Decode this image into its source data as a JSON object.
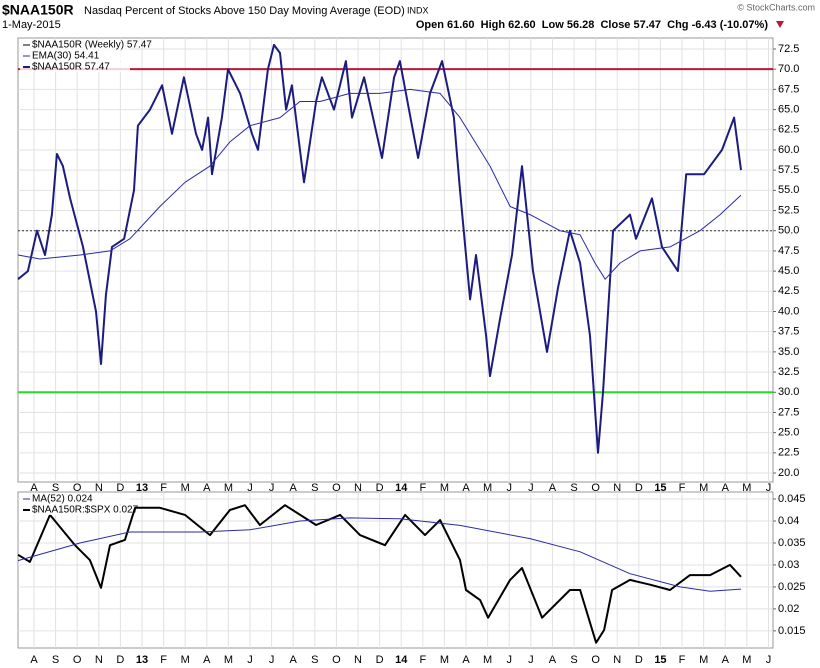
{
  "header": {
    "symbol": "$NAA150R",
    "name": "Nasdaq Percent of Stocks Above 150 Day Moving Average (EOD)",
    "exchange": "INDX",
    "copyright": "© StockCharts.com",
    "date": "1-May-2015",
    "quote": "Open 61.60  High 62.60  Low 56.28  Close 57.47  Chg -6.43 (-10.07%)"
  },
  "chart_data": [
    {
      "type": "line",
      "legend": [
        "$NAA150R (Weekly) 57.47"
      ],
      "xlim": [
        -0.74,
        34.21
      ],
      "xticks": [
        {
          "value": 0,
          "label": "A"
        },
        {
          "value": 1,
          "label": "S"
        },
        {
          "value": 2,
          "label": "O"
        },
        {
          "value": 3,
          "label": "N"
        },
        {
          "value": 4,
          "label": "D"
        },
        {
          "value": 5,
          "label": "13"
        },
        {
          "value": 6,
          "label": "F"
        },
        {
          "value": 7,
          "label": "M"
        },
        {
          "value": 8,
          "label": "A"
        },
        {
          "value": 9,
          "label": "M"
        },
        {
          "value": 10,
          "label": "J"
        },
        {
          "value": 11,
          "label": "J"
        },
        {
          "value": 12,
          "label": "A"
        },
        {
          "value": 13,
          "label": "S"
        },
        {
          "value": 14,
          "label": "O"
        },
        {
          "value": 15,
          "label": "N"
        },
        {
          "value": 16,
          "label": "D"
        },
        {
          "value": 17,
          "label": "14"
        },
        {
          "value": 18,
          "label": "F"
        },
        {
          "value": 19,
          "label": "M"
        },
        {
          "value": 20,
          "label": "A"
        },
        {
          "value": 21,
          "label": "M"
        },
        {
          "value": 22,
          "label": "J"
        },
        {
          "value": 23,
          "label": "J"
        },
        {
          "value": 24,
          "label": "A"
        },
        {
          "value": 25,
          "label": "S"
        },
        {
          "value": 26,
          "label": "O"
        },
        {
          "value": 27,
          "label": "N"
        },
        {
          "value": 28,
          "label": "D"
        },
        {
          "value": 29,
          "label": "15"
        },
        {
          "value": 30,
          "label": "F"
        },
        {
          "value": 31,
          "label": "M"
        },
        {
          "value": 32,
          "label": "A"
        },
        {
          "value": 33,
          "label": "M"
        },
        {
          "value": 34,
          "label": "J"
        }
      ],
      "ylim": [
        18.89,
        73.86
      ],
      "yticks": [
        {
          "value": 20,
          "label": "20.0"
        },
        22.5,
        {
          "value": 25,
          "label": "25.0"
        },
        27.5,
        {
          "value": 30,
          "label": "30.0"
        },
        32.5,
        {
          "value": 35,
          "label": "35.0"
        },
        37.5,
        {
          "value": 40,
          "label": "40.0"
        },
        42.5,
        {
          "value": 45,
          "label": "45.0"
        },
        47.5,
        {
          "value": 50,
          "label": "50.0"
        },
        52.5,
        {
          "value": 55,
          "label": "55.0"
        },
        57.5,
        {
          "value": 60,
          "label": "60.0"
        },
        62.5,
        {
          "value": 65,
          "label": "65.0"
        },
        67.5,
        {
          "value": 70,
          "label": "70.0"
        },
        72.5
      ],
      "grid": true,
      "reference_lines": [
        {
          "value": 70,
          "color": "#c0143c"
        },
        {
          "value": 30,
          "color": "#22dd22"
        },
        {
          "value": 50,
          "color": "#333333",
          "dash": true
        }
      ],
      "series": [
        {
          "name": "$NAA150R 57.47",
          "color": "#1c1c80",
          "width": 2,
          "x": [
            -0.74,
            -0.28,
            0.14,
            0.51,
            0.83,
            1.06,
            1.34,
            1.67,
            2.27,
            2.87,
            3.1,
            3.33,
            3.61,
            4.17,
            4.63,
            4.81,
            5.37,
            5.93,
            6.39,
            6.94,
            7.5,
            7.78,
            8.06,
            8.24,
            8.7,
            8.98,
            9.54,
            10.09,
            10.37,
            10.83,
            11.11,
            11.39,
            11.67,
            11.94,
            12.5,
            13.06,
            13.33,
            13.89,
            14.44,
            14.72,
            15.28,
            16.11,
            16.67,
            16.94,
            17.5,
            17.78,
            18.33,
            18.89,
            19.44,
            19.72,
            20.0,
            20.19,
            20.46,
            20.93,
            21.11,
            21.57,
            22.13,
            22.59,
            23.1,
            23.75,
            24.26,
            24.81,
            25.28,
            25.74,
            26.11,
            26.34,
            26.81,
            27.59,
            27.87,
            28.61,
            29.07,
            29.81,
            30.19,
            31.02,
            31.85,
            32.41,
            32.73
          ],
          "values": [
            44,
            45,
            50,
            47,
            52,
            59.5,
            58,
            54,
            48,
            40,
            33.5,
            42,
            48,
            49,
            55,
            63,
            65,
            68,
            62,
            69,
            62,
            60,
            64,
            57,
            64,
            70,
            67,
            62,
            60,
            70,
            73,
            72,
            65,
            68,
            56,
            66,
            69,
            65,
            71,
            64,
            69,
            59,
            69,
            71,
            63,
            59,
            67,
            71,
            64,
            55,
            47,
            41.5,
            47,
            37,
            32,
            39,
            47,
            58,
            45,
            35,
            43,
            50,
            46,
            37,
            22.5,
            30,
            50,
            52,
            49,
            54,
            48,
            45,
            57,
            57,
            60,
            64,
            57.5
          ]
        },
        {
          "name": "EMA(30) 54.41",
          "color": "#2a2aa8",
          "width": 1,
          "x": [
            -0.74,
            0.28,
            2.13,
            3.52,
            4.44,
            5.83,
            6.99,
            8.15,
            9.07,
            10.0,
            11.39,
            12.31,
            13.24,
            14.63,
            16.02,
            17.41,
            18.8,
            19.72,
            21.11,
            22.04,
            22.96,
            24.35,
            25.28,
            25.97,
            26.44,
            27.13,
            28.06,
            29.44,
            30.83,
            31.76,
            32.73
          ],
          "values": [
            47,
            46.5,
            47,
            47.5,
            49,
            53,
            56,
            58,
            61,
            63,
            64,
            66,
            66,
            67,
            67,
            67.5,
            67,
            64,
            58,
            53,
            52,
            50,
            49.5,
            46,
            44,
            46,
            47.5,
            48,
            50,
            52,
            54.41
          ]
        }
      ]
    },
    {
      "type": "line",
      "xlim": [
        -0.74,
        34.21
      ],
      "ylim": [
        0.0111,
        0.0466
      ],
      "yticks": [
        0.015,
        0.02,
        0.025,
        0.03,
        0.035,
        0.04,
        0.045
      ],
      "grid": true,
      "series": [
        {
          "name": "$NAA150R:$SPX 0.027",
          "color": "#000000",
          "width": 2,
          "x": [
            -0.74,
            -0.19,
            0.74,
            1.9,
            2.59,
            3.1,
            3.52,
            4.21,
            4.68,
            5.83,
            6.99,
            8.15,
            9.07,
            9.77,
            10.46,
            11.62,
            13.06,
            14.17,
            15.09,
            16.25,
            17.18,
            18.1,
            18.8,
            19.72,
            20.0,
            20.65,
            21.02,
            22.04,
            22.59,
            23.52,
            24.81,
            25.28,
            26.02,
            26.39,
            26.76,
            27.59,
            28.52,
            29.44,
            30.37,
            31.3,
            32.22,
            32.73
          ],
          "values": [
            0.0323,
            0.0307,
            0.0414,
            0.0345,
            0.0311,
            0.0248,
            0.0345,
            0.0357,
            0.043,
            0.043,
            0.0414,
            0.0368,
            0.0425,
            0.0436,
            0.0391,
            0.0436,
            0.0391,
            0.0414,
            0.0368,
            0.0345,
            0.0414,
            0.0368,
            0.0402,
            0.0311,
            0.0243,
            0.022,
            0.018,
            0.0266,
            0.0293,
            0.018,
            0.0243,
            0.0243,
            0.0123,
            0.0152,
            0.0243,
            0.0266,
            0.0255,
            0.0243,
            0.0277,
            0.0277,
            0.03,
            0.0273
          ]
        },
        {
          "name": "MA(52) 0.024",
          "color": "#2a2aa8",
          "width": 1,
          "x": [
            -0.74,
            2.13,
            4.44,
            7.69,
            10.0,
            12.31,
            14.63,
            16.94,
            19.72,
            22.96,
            25.28,
            27.59,
            29.91,
            31.3,
            32.73
          ],
          "values": [
            0.031,
            0.035,
            0.0375,
            0.0375,
            0.038,
            0.04,
            0.0407,
            0.0405,
            0.039,
            0.036,
            0.033,
            0.028,
            0.025,
            0.024,
            0.0245
          ]
        }
      ]
    }
  ]
}
